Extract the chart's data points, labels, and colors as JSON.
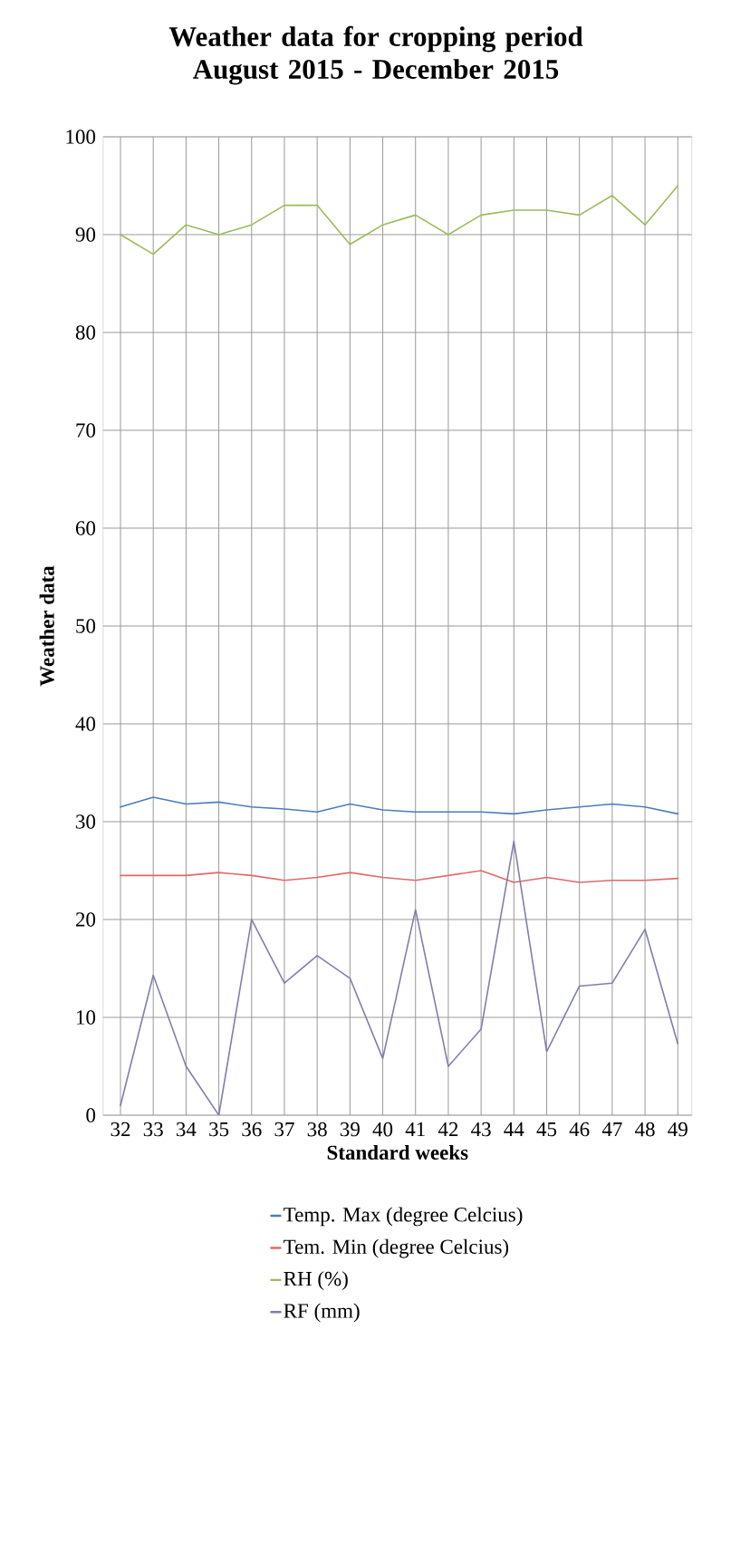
{
  "chart_data": {
    "type": "line",
    "title": "Weather data for cropping period August 2015 - December 2015",
    "xlabel": "Standard weeks",
    "ylabel": "Weather data",
    "categories": [
      "32",
      "33",
      "34",
      "35",
      "36",
      "37",
      "38",
      "39",
      "40",
      "41",
      "42",
      "43",
      "44",
      "45",
      "46",
      "47",
      "48",
      "49"
    ],
    "series": [
      {
        "name": "Temp. Max (degree Celcius)",
        "color": "#4a7ebb",
        "values": [
          31.5,
          32.5,
          31.8,
          32,
          31.5,
          31.3,
          31,
          31.8,
          31.2,
          31,
          31,
          31,
          30.8,
          31.2,
          31.5,
          31.8,
          31.5,
          30.8
        ]
      },
      {
        "name": "Tem. Min  (degree Celcius)",
        "color": "#e06a66",
        "values": [
          24.5,
          24.5,
          24.5,
          24.8,
          24.5,
          24,
          24.3,
          24.8,
          24.3,
          24,
          24.5,
          25,
          23.8,
          24.3,
          23.8,
          24,
          24,
          24.2
        ]
      },
      {
        "name": "RH  (%)",
        "color": "#9bbb59",
        "values": [
          90,
          88,
          91,
          90,
          91,
          93,
          93,
          89,
          91,
          92,
          90,
          92,
          92.5,
          92.5,
          92,
          94,
          91,
          95
        ]
      },
      {
        "name": "RF (mm)",
        "color": "#7f7fab",
        "values": [
          1,
          14.3,
          5,
          0,
          20,
          13.5,
          16.3,
          14,
          5.8,
          21,
          5,
          8.8,
          28,
          6.5,
          13.2,
          13.5,
          19,
          7.3
        ]
      }
    ],
    "ylim": [
      0,
      100
    ],
    "yticks": [
      0,
      10,
      20,
      30,
      40,
      50,
      60,
      70,
      80,
      90,
      100
    ],
    "grid": true,
    "legend": "right",
    "marker": "none",
    "line_style": "solid"
  }
}
